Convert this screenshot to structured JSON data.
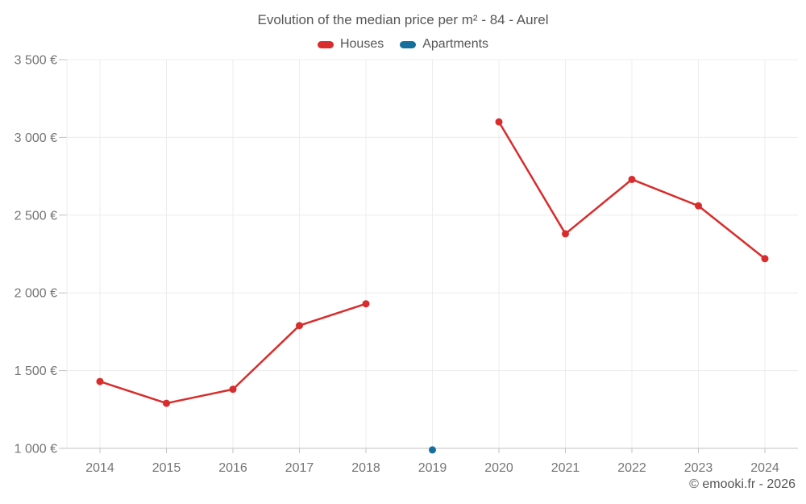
{
  "title": "Evolution of the median price per m² - 84 - Aurel",
  "footer": "© emooki.fr - 2026",
  "colors": {
    "houses": "#d92c2c",
    "apartments": "#176f9e",
    "grid": "#ececec",
    "axis": "#c2c2c2",
    "tick_label": "#757575",
    "text": "#555555",
    "background": "#ffffff"
  },
  "chart_data": {
    "type": "line",
    "title": "Evolution of the median price per m² - 84 - Aurel",
    "x": [
      2014,
      2015,
      2016,
      2017,
      2018,
      2019,
      2020,
      2021,
      2022,
      2023,
      2024
    ],
    "series": [
      {
        "name": "Houses",
        "color": "#d92c2c",
        "values": [
          1430,
          1290,
          1380,
          1790,
          1930,
          null,
          3100,
          2380,
          2730,
          2560,
          2220
        ]
      },
      {
        "name": "Apartments",
        "color": "#176f9e",
        "values": [
          null,
          null,
          null,
          null,
          null,
          990,
          null,
          null,
          null,
          null,
          null
        ]
      }
    ],
    "y_tick_values": [
      1000,
      1500,
      2000,
      2500,
      3000,
      3500
    ],
    "y_ticks": [
      "1 000 €",
      "1 500 €",
      "2 000 €",
      "2 500 €",
      "3 000 €",
      "3 500 €"
    ],
    "ylim": [
      1000,
      3500
    ],
    "xlabel": "",
    "ylabel": "",
    "grid": true,
    "legend_position": "top"
  }
}
